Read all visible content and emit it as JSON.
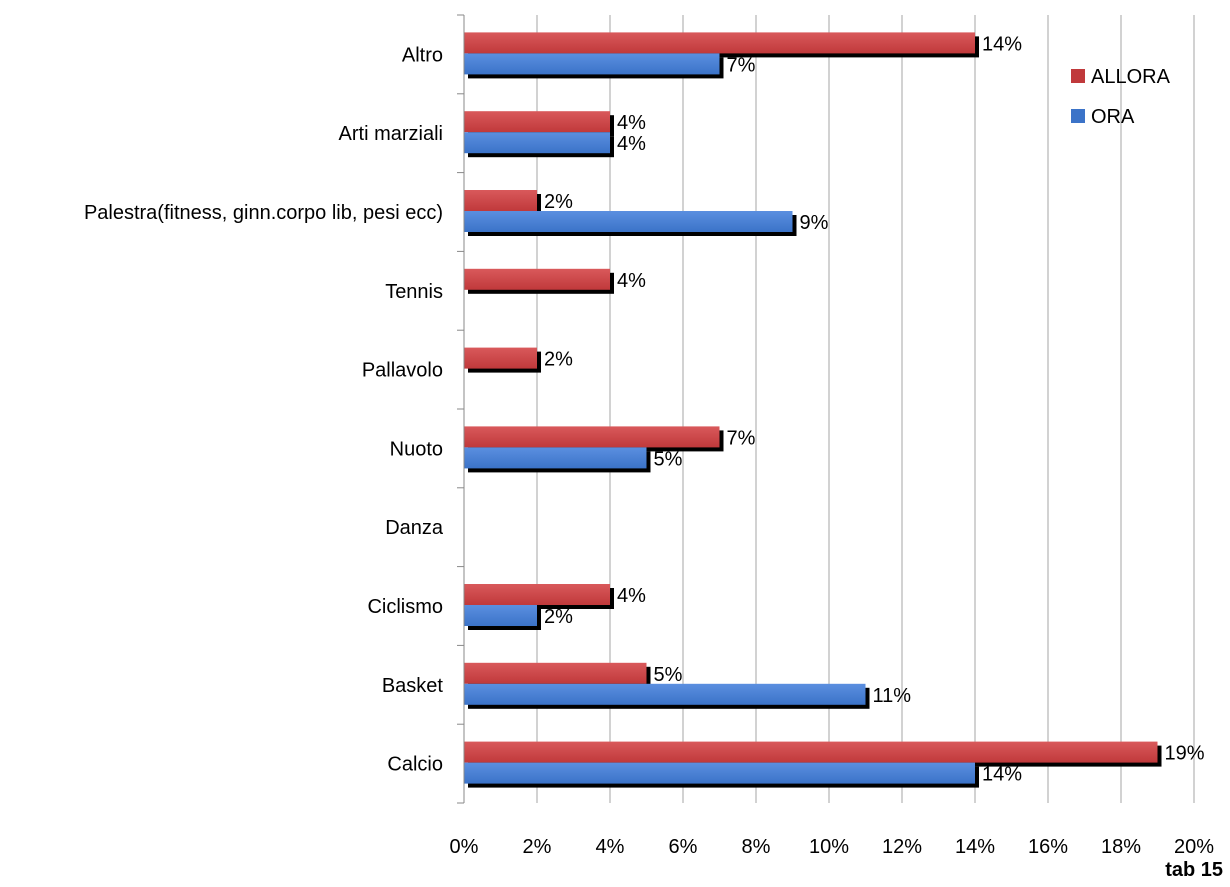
{
  "chart_data": {
    "type": "bar",
    "orientation": "horizontal",
    "categories": [
      "Altro",
      "Arti marziali",
      "Palestra(fitness, ginn.corpo lib, pesi ecc)",
      "Tennis",
      "Pallavolo",
      "Nuoto",
      "Danza",
      "Ciclismo",
      "Basket",
      "Calcio"
    ],
    "series": [
      {
        "name": "ALLORA",
        "color": "#c0393b",
        "values": [
          14,
          4,
          2,
          4,
          2,
          7,
          null,
          4,
          5,
          19
        ],
        "labels": [
          "14%",
          "4%",
          "2%",
          "4%",
          "2%",
          "7%",
          "",
          "4%",
          "5%",
          "19%"
        ]
      },
      {
        "name": "ORA",
        "color": "#3b73c8",
        "values": [
          7,
          4,
          9,
          null,
          null,
          5,
          null,
          2,
          11,
          14
        ],
        "labels": [
          "7%",
          "4%",
          "9%",
          "",
          "",
          "5%",
          "",
          "2%",
          "11%",
          "14%"
        ]
      }
    ],
    "xlim": [
      0,
      20
    ],
    "xticks": [
      "0%",
      "2%",
      "4%",
      "6%",
      "8%",
      "10%",
      "12%",
      "14%",
      "16%",
      "18%",
      "20%"
    ],
    "grid": "vertical",
    "legend_position": "top-right",
    "caption": "tab 15"
  }
}
